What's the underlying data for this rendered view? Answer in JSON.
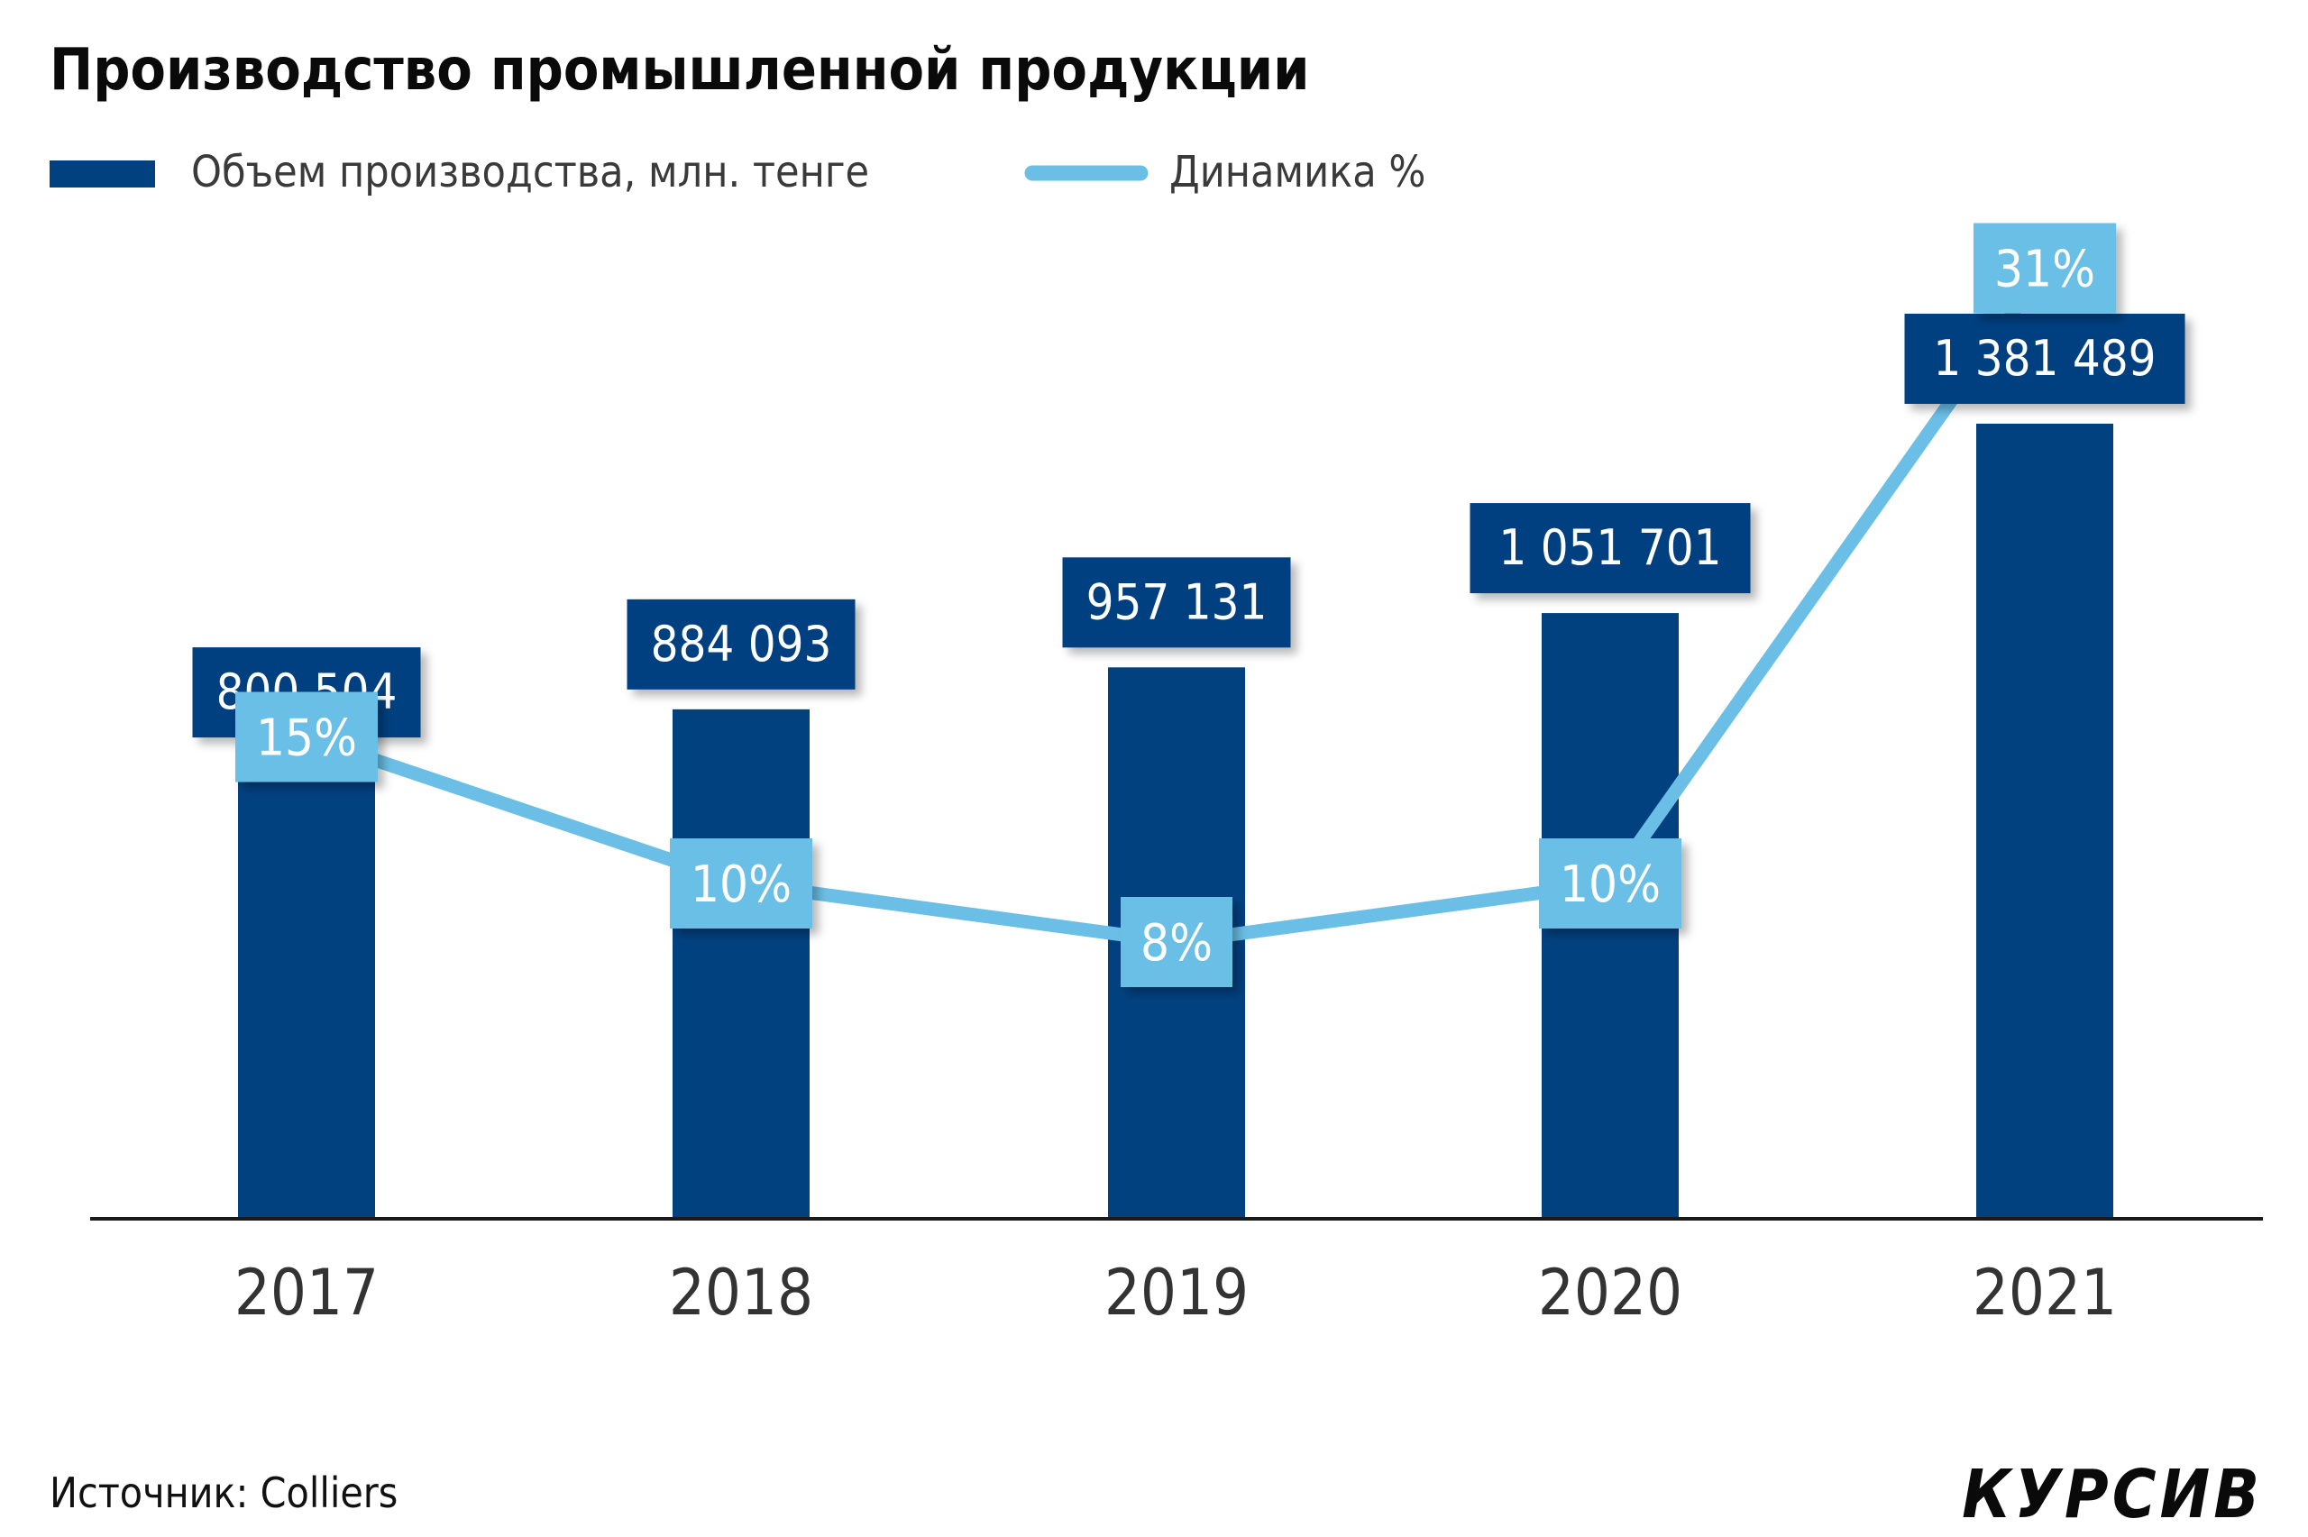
{
  "chart_data": {
    "type": "bar",
    "title": "Производство промышленной продукции",
    "categories": [
      "2017",
      "2018",
      "2019",
      "2020",
      "2021"
    ],
    "series": [
      {
        "name": "Объем производства, млн. тенге",
        "type": "bar",
        "values": [
          800504,
          884093,
          957131,
          1051701,
          1381489
        ],
        "labels": [
          "800 504",
          "884 093",
          "957 131",
          "1 051 701",
          "1 381 489"
        ],
        "color": "#024180"
      },
      {
        "name": "Динамика %",
        "type": "line",
        "values": [
          15,
          10,
          8,
          10,
          31
        ],
        "labels": [
          "15%",
          "10%",
          "8%",
          "10%",
          "31%"
        ],
        "color": "#6bbfe7"
      }
    ],
    "legend_position": "top-left",
    "grid": false
  },
  "source_label": "Источник: Colliers",
  "logo_text": "КУРСИВ",
  "colors": {
    "bar": "#024180",
    "line": "#6bbfe7",
    "bar_label_text": "#ffffff",
    "axis": "#1a1a1a",
    "tick_text": "#333333",
    "title": "#0a0a0a",
    "legend_text": "#3a3a3a"
  }
}
